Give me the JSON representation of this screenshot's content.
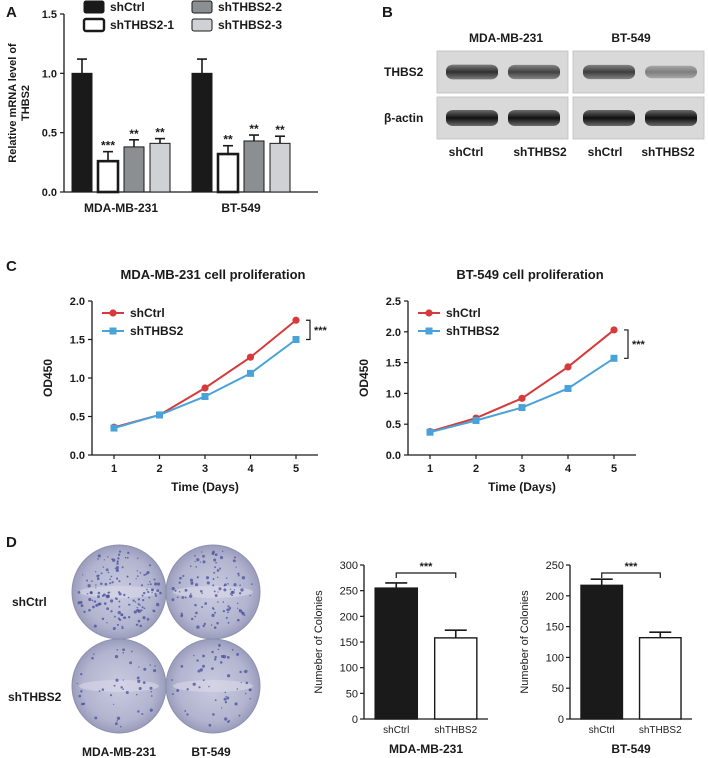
{
  "panel_labels": {
    "a": "A",
    "b": "B",
    "c": "C",
    "d": "D"
  },
  "colors": {
    "shctrl": "#1a1a1a",
    "shthbs2_1": "#ffffff",
    "shthbs2_2": "#8c8f92",
    "shthbs2_3": "#cfd1d4",
    "line_shctrl": "#d63a3a",
    "line_shthbs2": "#4aa3d8",
    "plate": "#a8aac8"
  },
  "western_blot": {
    "cell_lines": [
      "MDA-MB-231",
      "BT-549"
    ],
    "rows": [
      "THBS2",
      "β-actin"
    ],
    "lanes": [
      "shCtrl",
      "shTHBS2",
      "shCtrl",
      "shTHBS2"
    ],
    "band_intensity": [
      [
        0.78,
        0.7,
        0.72,
        0.42
      ],
      [
        0.92,
        0.92,
        0.93,
        0.93
      ]
    ]
  },
  "colony_images": {
    "rows": [
      "shCtrl",
      "shTHBS2"
    ],
    "cols": [
      "MDA-MB-231",
      "BT-549"
    ]
  },
  "chart_data": [
    {
      "id": "A",
      "type": "bar",
      "ylabel_lines": [
        "Relative mRNA level of",
        "THBS2"
      ],
      "groups": [
        "MDA-MB-231",
        "BT-549"
      ],
      "series": [
        {
          "name": "shCtrl",
          "values": [
            1.0,
            1.0
          ],
          "errors": [
            0.12,
            0.12
          ],
          "sig": [
            "",
            ""
          ]
        },
        {
          "name": "shTHBS2-1",
          "values": [
            0.26,
            0.32
          ],
          "errors": [
            0.08,
            0.07
          ],
          "sig": [
            "***",
            "**"
          ]
        },
        {
          "name": "shTHBS2-2",
          "values": [
            0.38,
            0.43
          ],
          "errors": [
            0.06,
            0.05
          ],
          "sig": [
            "**",
            "**"
          ]
        },
        {
          "name": "shTHBS2-3",
          "values": [
            0.41,
            0.41
          ],
          "errors": [
            0.04,
            0.06
          ],
          "sig": [
            "**",
            "**"
          ]
        }
      ],
      "ylim": [
        0,
        1.5
      ],
      "yticks": [
        "0.0",
        "0.5",
        "1.0",
        "1.5"
      ],
      "legend_position": "top"
    },
    {
      "id": "C1",
      "type": "line",
      "title": "MDA-MB-231 cell proliferation",
      "xlabel": "Time (Days)",
      "ylabel": "OD450",
      "x": [
        1,
        2,
        3,
        4,
        5
      ],
      "xticks": [
        "1",
        "2",
        "3",
        "4",
        "5"
      ],
      "series": [
        {
          "name": "shCtrl",
          "values": [
            0.36,
            0.52,
            0.87,
            1.27,
            1.75
          ]
        },
        {
          "name": "shTHBS2",
          "values": [
            0.35,
            0.52,
            0.76,
            1.06,
            1.5
          ]
        }
      ],
      "ylim": [
        0,
        2.0
      ],
      "yticks": [
        "0.0",
        "0.5",
        "1.0",
        "1.5",
        "2.0"
      ],
      "sig": "***",
      "legend_position": "top-left"
    },
    {
      "id": "C2",
      "type": "line",
      "title": "BT-549 cell proliferation",
      "xlabel": "Time (Days)",
      "ylabel": "OD450",
      "x": [
        1,
        2,
        3,
        4,
        5
      ],
      "xticks": [
        "1",
        "2",
        "3",
        "4",
        "5"
      ],
      "series": [
        {
          "name": "shCtrl",
          "values": [
            0.38,
            0.6,
            0.92,
            1.43,
            2.03
          ]
        },
        {
          "name": "shTHBS2",
          "values": [
            0.37,
            0.56,
            0.77,
            1.08,
            1.57
          ]
        }
      ],
      "ylim": [
        0,
        2.5
      ],
      "yticks": [
        "0.0",
        "0.5",
        "1.0",
        "1.5",
        "2.0",
        "2.5"
      ],
      "sig": "***",
      "legend_position": "top-left"
    },
    {
      "id": "D1",
      "type": "bar",
      "xlabel": "MDA-MB-231",
      "ylabel": "Numeber of Colonies",
      "categories": [
        "shCtrl",
        "shTHBS2"
      ],
      "values": [
        255,
        158
      ],
      "errors": [
        10,
        15
      ],
      "ylim": [
        0,
        300
      ],
      "yticks": [
        "0",
        "50",
        "100",
        "150",
        "200",
        "250",
        "300"
      ],
      "sig": "***"
    },
    {
      "id": "D2",
      "type": "bar",
      "xlabel": "BT-549",
      "ylabel": "Numeber of Colonies",
      "categories": [
        "shCtrl",
        "shTHBS2"
      ],
      "values": [
        217,
        132
      ],
      "errors": [
        10,
        9
      ],
      "ylim": [
        0,
        250
      ],
      "yticks": [
        "0",
        "50",
        "100",
        "150",
        "200",
        "250"
      ],
      "sig": "***"
    }
  ]
}
